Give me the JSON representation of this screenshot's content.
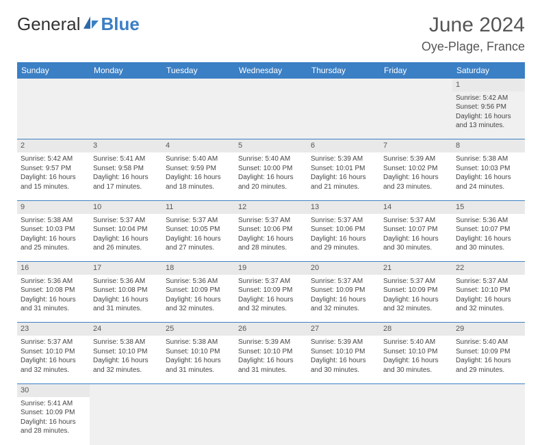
{
  "logo": {
    "text1": "General",
    "text2": "Blue"
  },
  "title": "June 2024",
  "location": "Oye-Plage, France",
  "colors": {
    "header_bg": "#3b7fc4",
    "header_text": "#ffffff",
    "row_divider": "#3b7fc4",
    "daynum_bg": "#e9e9e9",
    "body_text": "#444444",
    "title_text": "#555555"
  },
  "typography": {
    "title_fontsize": 30,
    "location_fontsize": 18,
    "logo_fontsize": 26,
    "header_fontsize": 12,
    "cell_fontsize": 10,
    "daynum_fontsize": 11
  },
  "weekdays": [
    "Sunday",
    "Monday",
    "Tuesday",
    "Wednesday",
    "Thursday",
    "Friday",
    "Saturday"
  ],
  "weeks": [
    [
      null,
      null,
      null,
      null,
      null,
      null,
      {
        "day": "1",
        "sunrise": "Sunrise: 5:42 AM",
        "sunset": "Sunset: 9:56 PM",
        "daylight1": "Daylight: 16 hours",
        "daylight2": "and 13 minutes."
      }
    ],
    [
      {
        "day": "2",
        "sunrise": "Sunrise: 5:42 AM",
        "sunset": "Sunset: 9:57 PM",
        "daylight1": "Daylight: 16 hours",
        "daylight2": "and 15 minutes."
      },
      {
        "day": "3",
        "sunrise": "Sunrise: 5:41 AM",
        "sunset": "Sunset: 9:58 PM",
        "daylight1": "Daylight: 16 hours",
        "daylight2": "and 17 minutes."
      },
      {
        "day": "4",
        "sunrise": "Sunrise: 5:40 AM",
        "sunset": "Sunset: 9:59 PM",
        "daylight1": "Daylight: 16 hours",
        "daylight2": "and 18 minutes."
      },
      {
        "day": "5",
        "sunrise": "Sunrise: 5:40 AM",
        "sunset": "Sunset: 10:00 PM",
        "daylight1": "Daylight: 16 hours",
        "daylight2": "and 20 minutes."
      },
      {
        "day": "6",
        "sunrise": "Sunrise: 5:39 AM",
        "sunset": "Sunset: 10:01 PM",
        "daylight1": "Daylight: 16 hours",
        "daylight2": "and 21 minutes."
      },
      {
        "day": "7",
        "sunrise": "Sunrise: 5:39 AM",
        "sunset": "Sunset: 10:02 PM",
        "daylight1": "Daylight: 16 hours",
        "daylight2": "and 23 minutes."
      },
      {
        "day": "8",
        "sunrise": "Sunrise: 5:38 AM",
        "sunset": "Sunset: 10:03 PM",
        "daylight1": "Daylight: 16 hours",
        "daylight2": "and 24 minutes."
      }
    ],
    [
      {
        "day": "9",
        "sunrise": "Sunrise: 5:38 AM",
        "sunset": "Sunset: 10:03 PM",
        "daylight1": "Daylight: 16 hours",
        "daylight2": "and 25 minutes."
      },
      {
        "day": "10",
        "sunrise": "Sunrise: 5:37 AM",
        "sunset": "Sunset: 10:04 PM",
        "daylight1": "Daylight: 16 hours",
        "daylight2": "and 26 minutes."
      },
      {
        "day": "11",
        "sunrise": "Sunrise: 5:37 AM",
        "sunset": "Sunset: 10:05 PM",
        "daylight1": "Daylight: 16 hours",
        "daylight2": "and 27 minutes."
      },
      {
        "day": "12",
        "sunrise": "Sunrise: 5:37 AM",
        "sunset": "Sunset: 10:06 PM",
        "daylight1": "Daylight: 16 hours",
        "daylight2": "and 28 minutes."
      },
      {
        "day": "13",
        "sunrise": "Sunrise: 5:37 AM",
        "sunset": "Sunset: 10:06 PM",
        "daylight1": "Daylight: 16 hours",
        "daylight2": "and 29 minutes."
      },
      {
        "day": "14",
        "sunrise": "Sunrise: 5:37 AM",
        "sunset": "Sunset: 10:07 PM",
        "daylight1": "Daylight: 16 hours",
        "daylight2": "and 30 minutes."
      },
      {
        "day": "15",
        "sunrise": "Sunrise: 5:36 AM",
        "sunset": "Sunset: 10:07 PM",
        "daylight1": "Daylight: 16 hours",
        "daylight2": "and 30 minutes."
      }
    ],
    [
      {
        "day": "16",
        "sunrise": "Sunrise: 5:36 AM",
        "sunset": "Sunset: 10:08 PM",
        "daylight1": "Daylight: 16 hours",
        "daylight2": "and 31 minutes."
      },
      {
        "day": "17",
        "sunrise": "Sunrise: 5:36 AM",
        "sunset": "Sunset: 10:08 PM",
        "daylight1": "Daylight: 16 hours",
        "daylight2": "and 31 minutes."
      },
      {
        "day": "18",
        "sunrise": "Sunrise: 5:36 AM",
        "sunset": "Sunset: 10:09 PM",
        "daylight1": "Daylight: 16 hours",
        "daylight2": "and 32 minutes."
      },
      {
        "day": "19",
        "sunrise": "Sunrise: 5:37 AM",
        "sunset": "Sunset: 10:09 PM",
        "daylight1": "Daylight: 16 hours",
        "daylight2": "and 32 minutes."
      },
      {
        "day": "20",
        "sunrise": "Sunrise: 5:37 AM",
        "sunset": "Sunset: 10:09 PM",
        "daylight1": "Daylight: 16 hours",
        "daylight2": "and 32 minutes."
      },
      {
        "day": "21",
        "sunrise": "Sunrise: 5:37 AM",
        "sunset": "Sunset: 10:09 PM",
        "daylight1": "Daylight: 16 hours",
        "daylight2": "and 32 minutes."
      },
      {
        "day": "22",
        "sunrise": "Sunrise: 5:37 AM",
        "sunset": "Sunset: 10:10 PM",
        "daylight1": "Daylight: 16 hours",
        "daylight2": "and 32 minutes."
      }
    ],
    [
      {
        "day": "23",
        "sunrise": "Sunrise: 5:37 AM",
        "sunset": "Sunset: 10:10 PM",
        "daylight1": "Daylight: 16 hours",
        "daylight2": "and 32 minutes."
      },
      {
        "day": "24",
        "sunrise": "Sunrise: 5:38 AM",
        "sunset": "Sunset: 10:10 PM",
        "daylight1": "Daylight: 16 hours",
        "daylight2": "and 32 minutes."
      },
      {
        "day": "25",
        "sunrise": "Sunrise: 5:38 AM",
        "sunset": "Sunset: 10:10 PM",
        "daylight1": "Daylight: 16 hours",
        "daylight2": "and 31 minutes."
      },
      {
        "day": "26",
        "sunrise": "Sunrise: 5:39 AM",
        "sunset": "Sunset: 10:10 PM",
        "daylight1": "Daylight: 16 hours",
        "daylight2": "and 31 minutes."
      },
      {
        "day": "27",
        "sunrise": "Sunrise: 5:39 AM",
        "sunset": "Sunset: 10:10 PM",
        "daylight1": "Daylight: 16 hours",
        "daylight2": "and 30 minutes."
      },
      {
        "day": "28",
        "sunrise": "Sunrise: 5:40 AM",
        "sunset": "Sunset: 10:10 PM",
        "daylight1": "Daylight: 16 hours",
        "daylight2": "and 30 minutes."
      },
      {
        "day": "29",
        "sunrise": "Sunrise: 5:40 AM",
        "sunset": "Sunset: 10:09 PM",
        "daylight1": "Daylight: 16 hours",
        "daylight2": "and 29 minutes."
      }
    ],
    [
      {
        "day": "30",
        "sunrise": "Sunrise: 5:41 AM",
        "sunset": "Sunset: 10:09 PM",
        "daylight1": "Daylight: 16 hours",
        "daylight2": "and 28 minutes."
      },
      null,
      null,
      null,
      null,
      null,
      null
    ]
  ]
}
